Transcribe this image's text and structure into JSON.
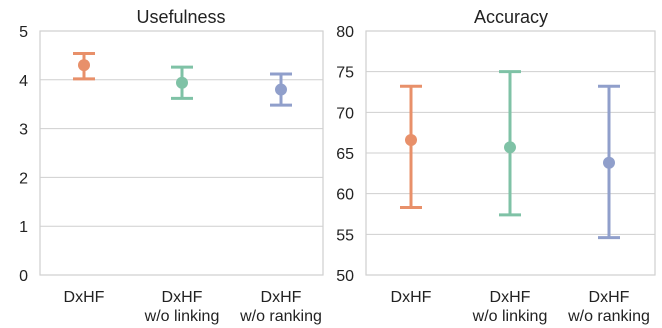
{
  "chart_data": [
    {
      "type": "errorbar",
      "title": "Usefulness",
      "ylim": [
        0,
        5
      ],
      "yticks": [
        "0",
        "1",
        "2",
        "3",
        "4",
        "5"
      ],
      "ytick_values": [
        0,
        1,
        2,
        3,
        4,
        5
      ],
      "grid": true,
      "categories": [
        [
          "DxHF"
        ],
        [
          "DxHF",
          "w/o linking"
        ],
        [
          "DxHF",
          "w/o ranking"
        ]
      ],
      "values": [
        4.3,
        3.94,
        3.8
      ],
      "lower": [
        4.02,
        3.62,
        3.48
      ],
      "upper": [
        4.54,
        4.26,
        4.12
      ],
      "colors": [
        "#e8906a",
        "#7fc2a6",
        "#909fcb"
      ]
    },
    {
      "type": "errorbar",
      "title": "Accuracy",
      "ylim": [
        50,
        80
      ],
      "yticks": [
        "50",
        "55",
        "60",
        "65",
        "70",
        "75",
        "80"
      ],
      "ytick_values": [
        50,
        55,
        60,
        65,
        70,
        75,
        80
      ],
      "grid": true,
      "categories": [
        [
          "DxHF"
        ],
        [
          "DxHF",
          "w/o linking"
        ],
        [
          "DxHF",
          "w/o ranking"
        ]
      ],
      "values": [
        66.6,
        65.7,
        63.8
      ],
      "lower": [
        58.3,
        57.4,
        54.6
      ],
      "upper": [
        73.2,
        75.0,
        73.2
      ],
      "colors": [
        "#e8906a",
        "#7fc2a6",
        "#909fcb"
      ]
    }
  ]
}
